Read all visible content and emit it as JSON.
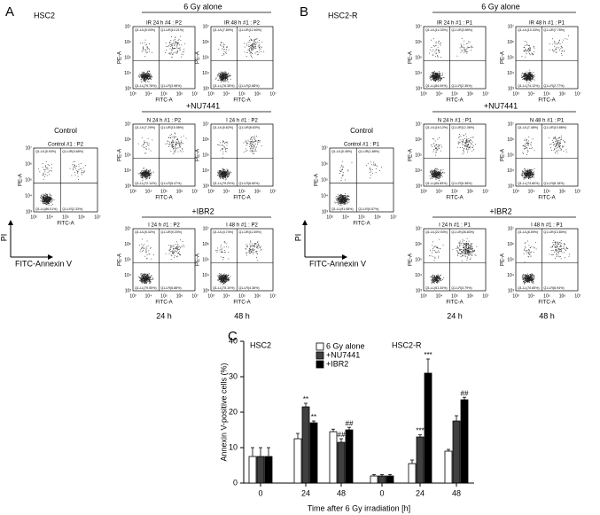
{
  "flow_axes": {
    "x_label": "FITC-A",
    "y_label": "PE-A",
    "ticks": [
      "10³",
      "10⁴",
      "10⁵",
      "10⁶",
      "10⁷"
    ]
  },
  "panel_a": {
    "letter": "A",
    "cell_line": "HSC2",
    "groups": [
      "6 Gy alone",
      "+NU7441",
      "+IBR2"
    ],
    "control_label": "Control",
    "axis_y": "PI",
    "axis_x": "FITC-Annexin V",
    "times": [
      "24 h",
      "48 h"
    ],
    "plots": [
      {
        "title": "Control #1 : P2",
        "quadrants": [
          "Q1-UL(5.93%)",
          "Q1-UR(5.68%)",
          "Q1-LL(86.01%)",
          "Q1-LR(2.33%)"
        ]
      },
      {
        "title": "IR 24 h #4 : P2",
        "quadrants": [
          "Q1-UL(5.03%)",
          "Q1-UR(10.21%)",
          "Q1-LL(79.78%)",
          "Q1-LR(3.98%)"
        ]
      },
      {
        "title": "IR 48 h #1 : P2",
        "quadrants": [
          "Q1-UL(7.89%)",
          "Q1-UR(12.60%)",
          "Q1-LL(76.35%)",
          "Q1-LR(2.88%)"
        ]
      },
      {
        "title": "N 24 h #1 : P2",
        "quadrants": [
          "Q1-UL(7.29%)",
          "Q1-UR(15.58%)",
          "Q1-LL(72.14%)",
          "Q1-LR(5.47%)"
        ]
      },
      {
        "title": "I 24 h #1 : P2",
        "quadrants": [
          "Q1-UL(5.62%)",
          "Q1-UR(8.63%)",
          "Q1-LL(79.20%)",
          "Q1-LR(6.60%)"
        ]
      },
      {
        "title": "I 24 h #1 : P2",
        "quadrants": [
          "Q1-UL(5.32%)",
          "Q1-UR(9.20%)",
          "Q1-LL(79.55%)",
          "Q1-LR(6.88%)"
        ]
      },
      {
        "title": "I 48 h #1 : P2",
        "quadrants": [
          "Q1-UL(4.74%)",
          "Q1-UR(11.69%)",
          "Q1-LL(75.10%)",
          "Q1-LR(4.36%)"
        ]
      }
    ]
  },
  "panel_b": {
    "letter": "B",
    "cell_line": "HSC2-R",
    "groups": [
      "6 Gy alone",
      "+NU7441",
      "+IBR2"
    ],
    "control_label": "Control",
    "axis_y": "PI",
    "axis_x": "FITC-Annexin V",
    "times": [
      "24 h",
      "48 h"
    ],
    "plots": [
      {
        "title": "Control #1 : P1",
        "quadrants": [
          "Q1-UL(5.45%)",
          "Q1-UR(1.88%)",
          "Q1-LL(91.08%)",
          "Q1-LR(0.57%)"
        ]
      },
      {
        "title": "IR 24 h #1 : P1",
        "quadrants": [
          "Q1-UL(11.03%)",
          "Q1-UR(3.89%)",
          "Q1-LL(84.09%)",
          "Q1-LR(2.36%)"
        ]
      },
      {
        "title": "IR 48 h #1 : P1",
        "quadrants": [
          "Q1-UL(10.33%)",
          "Q1-UR(7.78%)",
          "Q1-LL(74.12%)",
          "Q1-LR(2.77%)"
        ]
      },
      {
        "title": "N 24 h #1 : P1",
        "quadrants": [
          "Q1-UL(16.12%)",
          "Q1-UR(12.36%)",
          "Q1-LL(65.89%)",
          "Q1-LR(5.38%)"
        ]
      },
      {
        "title": "N 48 h #1 : P1",
        "quadrants": [
          "Q1-UL(7.48%)",
          "Q1-UR(10.88%)",
          "Q1-LL(73.80%)",
          "Q1-LR(8.18%)"
        ]
      },
      {
        "title": "I 24 h #1 : P1",
        "quadrants": [
          "Q1-UL(22.94%)",
          "Q1-UR(26.83%)",
          "Q1-LL(51.34%)",
          "Q1-LR(3.79%)"
        ]
      },
      {
        "title": "I 48 h #1 : P1",
        "quadrants": [
          "Q1-UL(8.59%)",
          "Q1-UR(13.80%)",
          "Q1-LL(70.65%)",
          "Q1-LR(6.94%)"
        ]
      }
    ]
  },
  "chart_data": {
    "type": "bar",
    "letter": "C",
    "groups": [
      "HSC2",
      "HSC2-R"
    ],
    "categories": [
      "0",
      "24",
      "48",
      "0",
      "24",
      "48"
    ],
    "xlabel": "Time after 6 Gy irradiation [h]",
    "ylabel": "Annexin V-positive cells (%)",
    "ylim": [
      0,
      40
    ],
    "yticks": [
      0,
      10,
      20,
      30,
      40
    ],
    "series": [
      {
        "name": "6 Gy alone",
        "color": "#ffffff",
        "values": [
          7.5,
          12.5,
          14.5,
          2,
          5.5,
          9
        ],
        "errors": [
          2.5,
          1.5,
          0.7,
          0.4,
          1,
          0.5
        ],
        "significance": [
          null,
          null,
          null,
          null,
          null,
          null
        ]
      },
      {
        "name": "+NU7441",
        "color": "#404040",
        "values": [
          7.5,
          21.5,
          11.5,
          2,
          13,
          17.5
        ],
        "errors": [
          2.5,
          1,
          1,
          0.4,
          0.6,
          1.5
        ],
        "significance": [
          null,
          "**",
          "##",
          null,
          "***",
          null
        ]
      },
      {
        "name": "+IBR2",
        "color": "#000000",
        "values": [
          7.5,
          17,
          15,
          2,
          31,
          23.5
        ],
        "errors": [
          2.5,
          0.5,
          0.7,
          0.4,
          4,
          0.7
        ],
        "significance": [
          null,
          "**",
          "##",
          null,
          "***",
          "##"
        ]
      }
    ]
  }
}
